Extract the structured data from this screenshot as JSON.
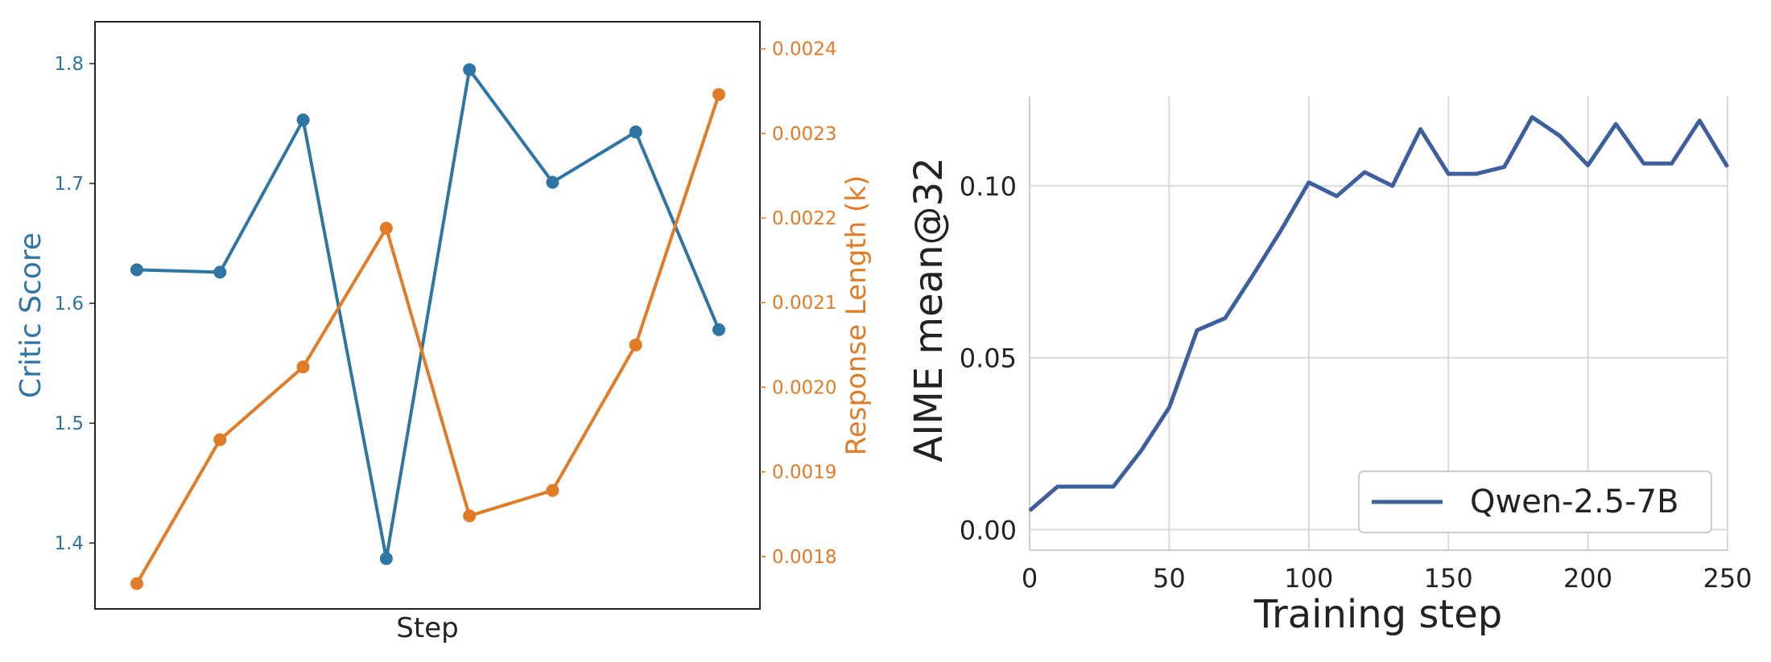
{
  "chart_data": [
    {
      "type": "line",
      "title": "",
      "xlabel": "Step",
      "ylabel": "Critic Score",
      "ylabel_right": "Response Length (k)",
      "x_ticks_visible": false,
      "grid": false,
      "x": [
        1,
        2,
        3,
        4,
        5,
        6,
        7,
        8
      ],
      "ylim": [
        1.345,
        1.835
      ],
      "y2lim": [
        0.001738,
        0.002432
      ],
      "yticks": [
        1.4,
        1.5,
        1.6,
        1.7,
        1.8
      ],
      "ytick_labels": [
        "1.4",
        "1.5",
        "1.6",
        "1.7",
        "1.8"
      ],
      "y2ticks": [
        0.0018,
        0.0019,
        0.002,
        0.0021,
        0.0022,
        0.0023,
        0.0024
      ],
      "y2tick_labels": [
        "0.0018",
        "0.0019",
        "0.0020",
        "0.0021",
        "0.0022",
        "0.0023",
        "0.0024"
      ],
      "series": [
        {
          "axis": "left",
          "color": "#2e75a3",
          "values": [
            1.628,
            1.626,
            1.753,
            1.387,
            1.795,
            1.701,
            1.743,
            1.578
          ]
        },
        {
          "axis": "right",
          "color": "#e07b28",
          "values": [
            0.001768,
            0.001938,
            0.002024,
            0.002188,
            0.001848,
            0.001878,
            0.00205,
            0.002346
          ]
        }
      ]
    },
    {
      "type": "line",
      "title": "",
      "xlabel": "Training step",
      "ylabel": "AIME mean@32",
      "grid": true,
      "legend_position": "bottom-right",
      "xlim": [
        0,
        250
      ],
      "ylim": [
        -0.006,
        0.126
      ],
      "xticks": [
        0,
        50,
        100,
        150,
        200,
        250
      ],
      "xtick_labels": [
        "0",
        "50",
        "100",
        "150",
        "200",
        "250"
      ],
      "yticks": [
        0.0,
        0.05,
        0.1
      ],
      "ytick_labels": [
        "0.00",
        "0.05",
        "0.10"
      ],
      "series": [
        {
          "name": "Qwen-2.5-7B",
          "color": "#3e5f9e",
          "x": [
            0,
            10,
            20,
            30,
            40,
            50,
            60,
            70,
            80,
            90,
            100,
            110,
            120,
            130,
            140,
            150,
            160,
            170,
            180,
            190,
            200,
            210,
            220,
            230,
            240,
            250
          ],
          "values": [
            0.0055,
            0.0125,
            0.0125,
            0.0125,
            0.023,
            0.0355,
            0.058,
            0.0615,
            0.074,
            0.087,
            0.101,
            0.097,
            0.104,
            0.1,
            0.1165,
            0.1035,
            0.1035,
            0.1055,
            0.12,
            0.1145,
            0.106,
            0.118,
            0.1065,
            0.1065,
            0.119,
            0.1055
          ]
        }
      ]
    }
  ]
}
